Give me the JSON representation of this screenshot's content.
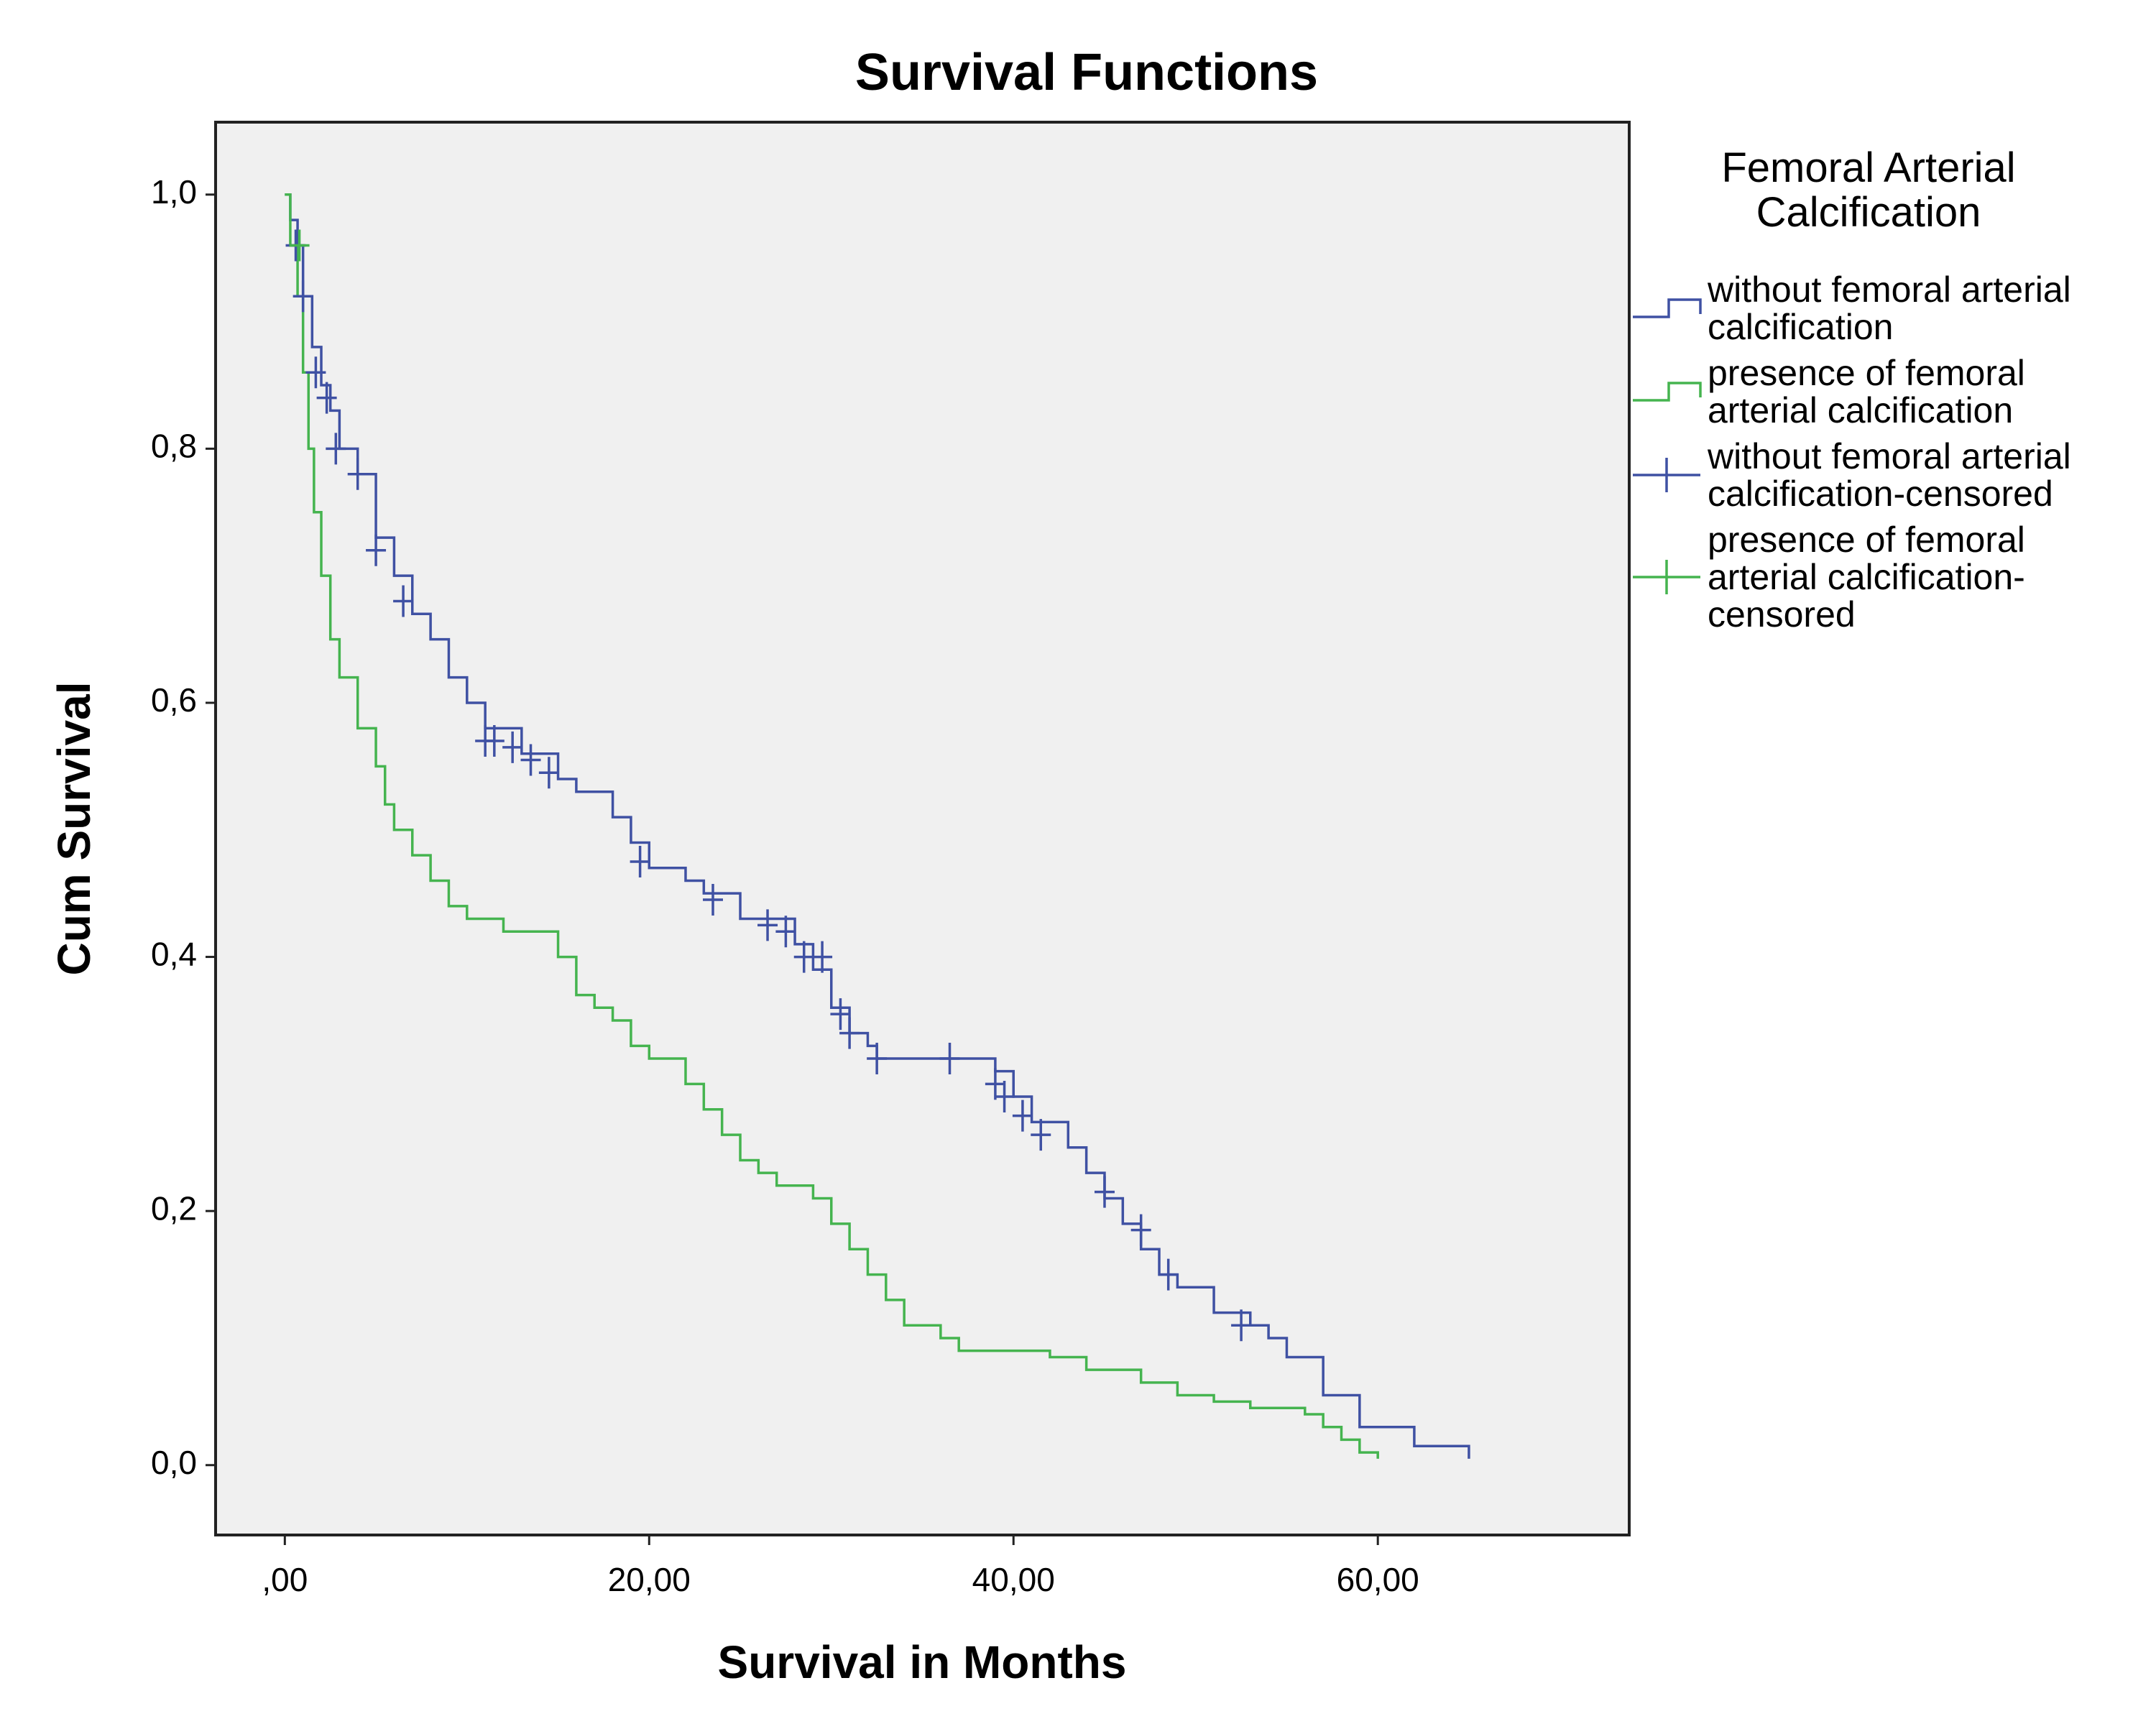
{
  "chart_data": {
    "type": "survival",
    "title": "Survival Functions",
    "xlabel": "Survival in Months",
    "ylabel": "Cum Survival",
    "legend_title": "Femoral Arterial Calcification",
    "legend": "right",
    "xlim": [
      -3.8,
      73.8
    ],
    "ylim": [
      -0.055,
      1.057
    ],
    "xticks": [
      {
        "value": 0,
        "label": ",00"
      },
      {
        "value": 20,
        "label": "20,00"
      },
      {
        "value": 40,
        "label": "40,00"
      },
      {
        "value": 60,
        "label": "60,00"
      }
    ],
    "yticks": [
      {
        "value": 0,
        "label": "0,0"
      },
      {
        "value": 0.2,
        "label": "0,2"
      },
      {
        "value": 0.4,
        "label": "0,4"
      },
      {
        "value": 0.6,
        "label": "0,6"
      },
      {
        "value": 0.8,
        "label": "0,8"
      },
      {
        "value": 1.0,
        "label": "1,0"
      }
    ],
    "series": [
      {
        "name": "without femoral arterial calcification",
        "color": "#3f51a3",
        "drawstyle": "steps-post",
        "x": [
          0,
          0.3,
          0.7,
          1,
          1.5,
          2,
          2.5,
          3,
          4,
          5,
          6,
          7,
          8,
          9,
          10,
          11,
          13,
          15,
          16,
          18,
          19,
          20,
          22,
          23,
          25,
          28,
          29,
          30,
          31,
          32,
          32.5,
          39,
          40,
          41,
          43,
          44,
          45,
          46,
          47,
          48,
          49,
          51,
          53,
          54,
          55,
          57,
          59,
          62,
          65
        ],
        "values": [
          1.0,
          0.98,
          0.96,
          0.92,
          0.88,
          0.85,
          0.83,
          0.8,
          0.78,
          0.73,
          0.7,
          0.67,
          0.65,
          0.62,
          0.6,
          0.58,
          0.56,
          0.54,
          0.53,
          0.51,
          0.49,
          0.47,
          0.46,
          0.45,
          0.43,
          0.41,
          0.39,
          0.36,
          0.34,
          0.33,
          0.32,
          0.31,
          0.29,
          0.27,
          0.25,
          0.23,
          0.21,
          0.19,
          0.17,
          0.15,
          0.14,
          0.12,
          0.11,
          0.1,
          0.085,
          0.055,
          0.03,
          0.015,
          0.005
        ]
      },
      {
        "name": "presence of femoral arterial calcification",
        "color": "#45b44f",
        "drawstyle": "steps-post",
        "x": [
          0,
          0.3,
          0.7,
          1,
          1.3,
          1.6,
          2,
          2.5,
          3,
          4,
          5,
          5.5,
          6,
          7,
          8,
          9,
          10,
          12,
          15,
          16,
          17,
          18,
          19,
          20,
          22,
          23,
          24,
          25,
          26,
          27,
          29,
          30,
          31,
          32,
          33,
          34,
          36,
          37,
          42,
          44,
          47,
          49,
          51,
          53,
          56,
          57,
          58,
          59,
          60
        ],
        "values": [
          1.0,
          0.96,
          0.92,
          0.86,
          0.8,
          0.75,
          0.7,
          0.65,
          0.62,
          0.58,
          0.55,
          0.52,
          0.5,
          0.48,
          0.46,
          0.44,
          0.43,
          0.42,
          0.4,
          0.37,
          0.36,
          0.35,
          0.33,
          0.32,
          0.3,
          0.28,
          0.26,
          0.24,
          0.23,
          0.22,
          0.21,
          0.19,
          0.17,
          0.15,
          0.13,
          0.11,
          0.1,
          0.09,
          0.085,
          0.075,
          0.065,
          0.055,
          0.05,
          0.045,
          0.04,
          0.03,
          0.02,
          0.01,
          0.005
        ]
      },
      {
        "name": "without femoral arterial calcification-censored",
        "color": "#3f51a3",
        "marker": "+",
        "x": [
          0.6,
          1,
          1.7,
          2.3,
          2.8,
          4,
          5,
          6.5,
          11,
          11.5,
          12.5,
          13.5,
          14.5,
          19.5,
          23.5,
          26.5,
          27.5,
          28.5,
          29.5,
          30.5,
          31,
          32.5,
          36.5,
          39,
          39.5,
          40.5,
          41.5,
          45,
          47,
          48.5,
          52.5
        ],
        "values": [
          0.96,
          0.92,
          0.86,
          0.84,
          0.8,
          0.78,
          0.72,
          0.68,
          0.57,
          0.57,
          0.565,
          0.555,
          0.545,
          0.475,
          0.445,
          0.425,
          0.42,
          0.4,
          0.4,
          0.355,
          0.34,
          0.32,
          0.32,
          0.3,
          0.29,
          0.275,
          0.26,
          0.215,
          0.185,
          0.15,
          0.11
        ]
      },
      {
        "name": "presence of femoral arterial calcification-censored",
        "color": "#45b44f",
        "marker": "+",
        "x": [
          0.8
        ],
        "values": [
          0.96
        ]
      }
    ]
  }
}
